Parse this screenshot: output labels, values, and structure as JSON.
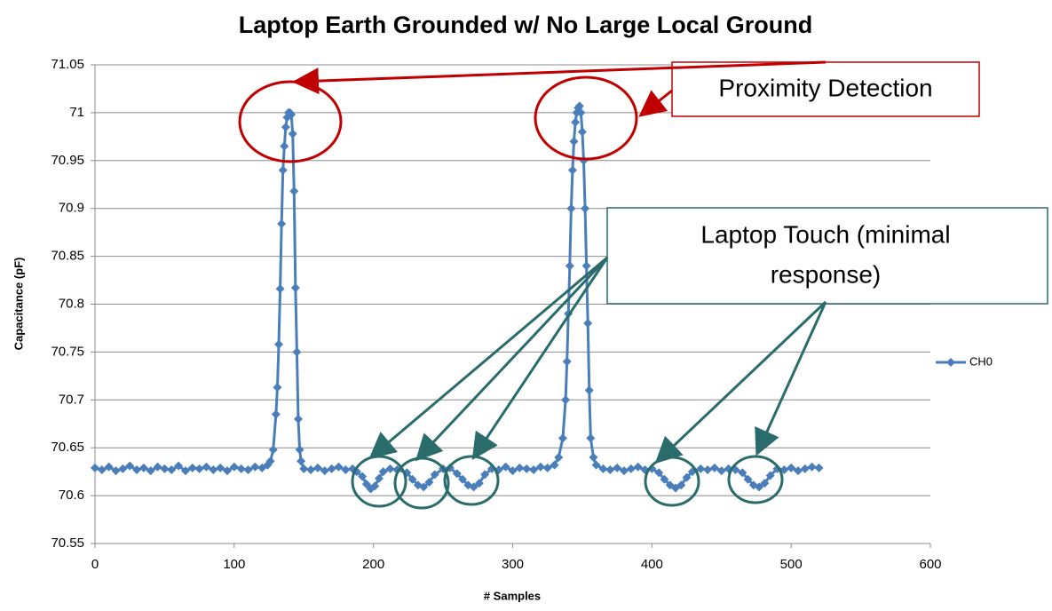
{
  "chart_data": {
    "type": "line",
    "title": "Laptop Earth Grounded w/ No Large Local Ground",
    "x_label": "# Samples",
    "y_label": "Capacitance  (pF)",
    "xlim": [
      0,
      600
    ],
    "xticks": [
      0,
      100,
      200,
      300,
      400,
      500,
      600
    ],
    "ylim": [
      70.55,
      71.05
    ],
    "yticks": [
      70.55,
      70.6,
      70.65,
      70.7,
      70.75,
      70.8,
      70.85,
      70.9,
      70.95,
      71,
      71.05
    ],
    "grid": true,
    "legend": "right",
    "annotations": [
      "Proximity Detection",
      "Laptop Touch (minimal",
      "response)"
    ],
    "x": [
      0,
      5,
      10,
      15,
      20,
      25,
      30,
      35,
      40,
      45,
      50,
      55,
      60,
      65,
      70,
      75,
      80,
      85,
      90,
      95,
      100,
      105,
      110,
      115,
      120,
      124,
      126,
      128,
      130,
      131,
      132,
      133,
      134,
      135,
      136,
      137,
      138,
      139,
      140,
      141,
      142,
      143,
      144,
      145,
      146,
      147,
      148,
      150,
      155,
      160,
      165,
      170,
      175,
      180,
      185,
      188,
      192,
      195,
      198,
      201,
      204,
      207,
      212,
      217,
      224,
      228,
      232,
      236,
      240,
      244,
      250,
      255,
      260,
      264,
      268,
      272,
      276,
      280,
      285,
      290,
      295,
      300,
      305,
      310,
      315,
      320,
      325,
      330,
      333,
      336,
      338,
      339,
      340,
      341,
      342,
      343,
      344,
      345,
      346,
      347,
      348,
      349,
      350,
      351,
      352,
      353,
      354,
      355,
      356,
      358,
      360,
      365,
      370,
      375,
      380,
      385,
      390,
      395,
      400,
      405,
      409,
      413,
      417,
      421,
      425,
      429,
      435,
      440,
      445,
      450,
      455,
      460,
      465,
      469,
      473,
      477,
      481,
      485,
      490,
      495,
      500,
      505,
      510,
      515,
      520
    ],
    "series": [
      {
        "name": "CH0",
        "color": "#4a7ebb",
        "values": [
          70.629,
          70.627,
          70.63,
          70.626,
          70.628,
          70.631,
          70.627,
          70.629,
          70.626,
          70.63,
          70.628,
          70.627,
          70.631,
          70.626,
          70.629,
          70.628,
          70.63,
          70.627,
          70.629,
          70.626,
          70.63,
          70.628,
          70.627,
          70.63,
          70.629,
          70.632,
          70.636,
          70.648,
          70.685,
          70.713,
          70.758,
          70.816,
          70.884,
          70.94,
          70.965,
          70.985,
          70.995,
          71.0,
          71.0,
          70.998,
          70.978,
          70.918,
          70.817,
          70.75,
          70.68,
          70.648,
          70.636,
          70.628,
          70.627,
          70.629,
          70.626,
          70.628,
          70.63,
          70.627,
          70.628,
          70.625,
          70.62,
          70.612,
          70.607,
          70.61,
          70.618,
          70.625,
          70.628,
          70.627,
          70.624,
          70.617,
          70.611,
          70.609,
          70.614,
          70.622,
          70.628,
          70.629,
          70.623,
          70.617,
          70.611,
          70.609,
          70.613,
          70.622,
          70.628,
          70.627,
          70.63,
          70.626,
          70.629,
          70.628,
          70.627,
          70.63,
          70.629,
          70.632,
          70.64,
          70.66,
          70.7,
          70.74,
          70.79,
          70.84,
          70.9,
          70.94,
          70.97,
          70.99,
          71.0,
          71.005,
          71.007,
          71.0,
          70.98,
          70.95,
          70.9,
          70.84,
          70.78,
          70.71,
          70.66,
          70.64,
          70.632,
          70.628,
          70.627,
          70.629,
          70.626,
          70.628,
          70.63,
          70.627,
          70.628,
          70.624,
          70.617,
          70.611,
          70.608,
          70.611,
          70.619,
          70.625,
          70.628,
          70.627,
          70.629,
          70.626,
          70.628,
          70.627,
          70.624,
          70.617,
          70.611,
          70.609,
          70.613,
          70.621,
          70.628,
          70.627,
          70.629,
          70.626,
          70.628,
          70.63,
          70.629
        ]
      }
    ]
  }
}
